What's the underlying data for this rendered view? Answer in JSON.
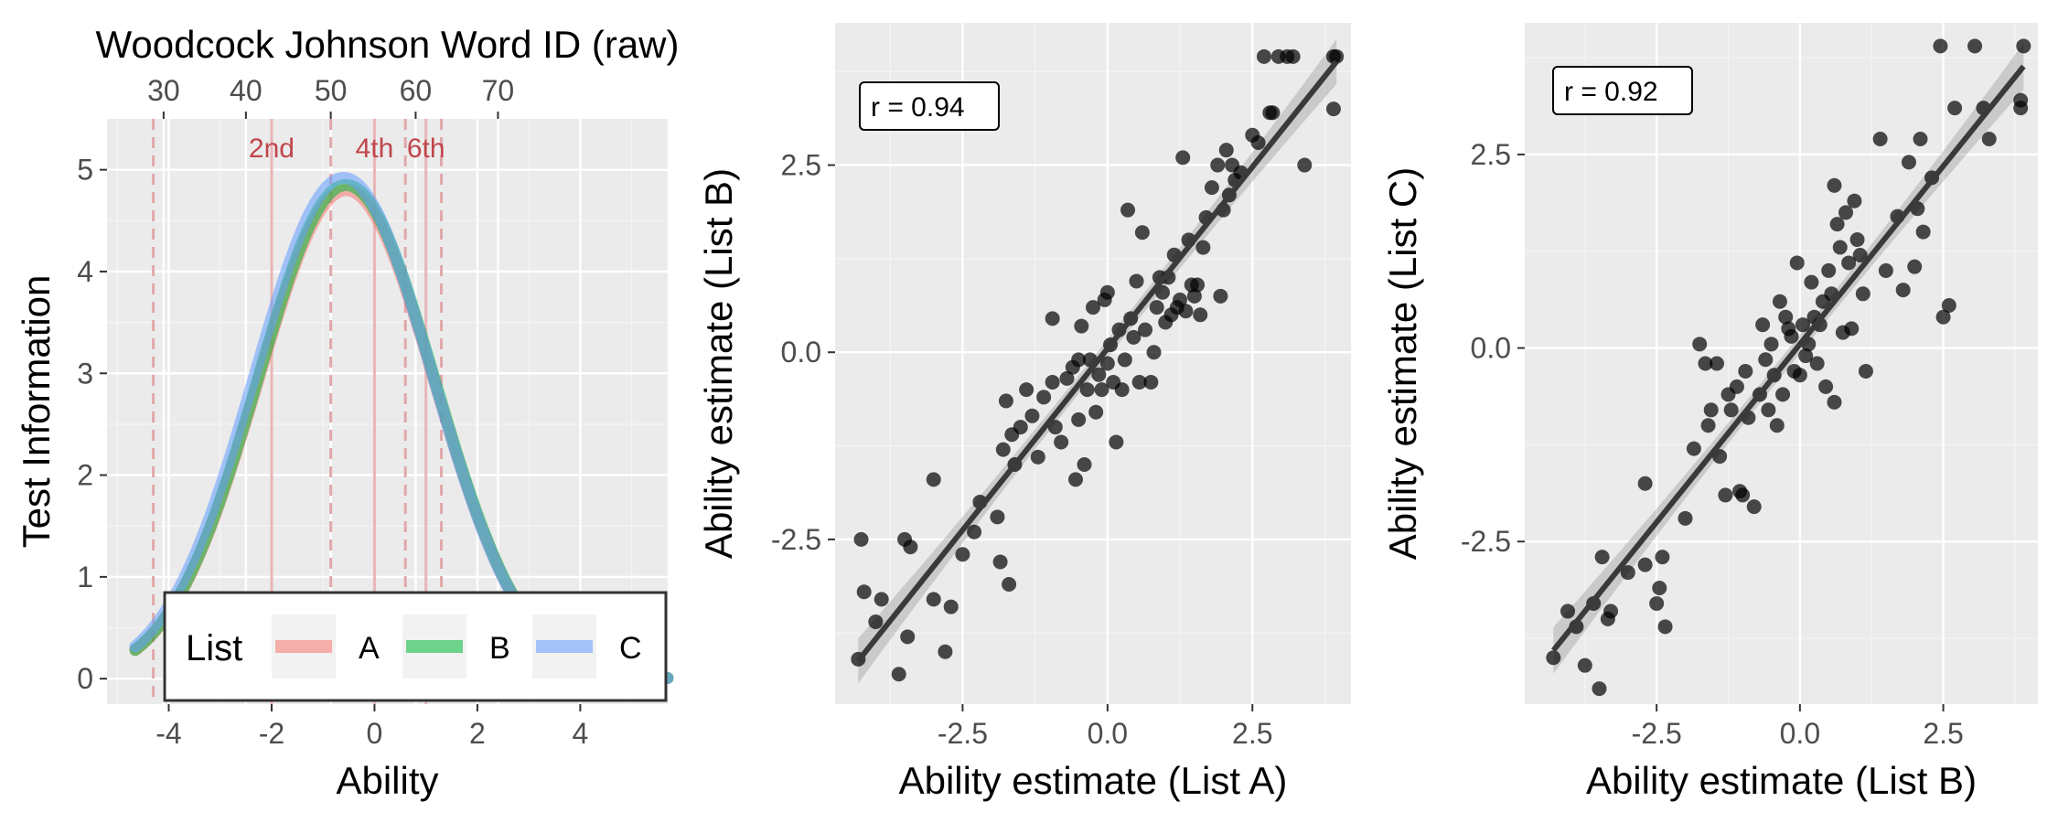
{
  "chart_data": [
    {
      "type": "line",
      "xlabel": "Ability",
      "ylabel": "Test Information",
      "top_axis_label": "Woodcock Johnson Word ID (raw)",
      "xlim": [
        -5.2,
        5.7
      ],
      "ylim": [
        -0.25,
        5.5
      ],
      "x_ticks": [
        -4,
        -2,
        0,
        2,
        4
      ],
      "y_ticks": [
        0,
        1,
        2,
        3,
        4,
        5
      ],
      "top_ticks": [
        {
          "label": "30",
          "x": -4.1
        },
        {
          "label": "40",
          "x": -2.5
        },
        {
          "label": "50",
          "x": -0.85
        },
        {
          "label": "60",
          "x": 0.8
        },
        {
          "label": "70",
          "x": 2.4
        }
      ],
      "grade_lines": [
        {
          "label": "2nd",
          "x": -2.0
        },
        {
          "label": "4th",
          "x": 0.0
        },
        {
          "label": "6th",
          "x": 1.0
        }
      ],
      "dashed_lines_x": [
        -4.3,
        -0.85,
        0.6,
        1.3
      ],
      "legend": {
        "title": "List",
        "position": "bottom-center"
      },
      "series": [
        {
          "name": "A",
          "color": "#f8766d",
          "peak": 4.8,
          "center": -0.55,
          "sd": 1.72,
          "start_x": -4.65
        },
        {
          "name": "B",
          "color": "#00ba38",
          "peak": 4.85,
          "center": -0.55,
          "sd": 1.72,
          "start_x": -4.65
        },
        {
          "name": "C",
          "color": "#619cff",
          "peak": 4.92,
          "center": -0.6,
          "sd": 1.73,
          "start_x": -4.65
        }
      ],
      "grid": true
    },
    {
      "type": "scatter",
      "xlabel": "Ability estimate (List A)",
      "ylabel": "Ability estimate (List B)",
      "annotation": "r = 0.94",
      "xlim": [
        -4.7,
        4.2
      ],
      "ylim": [
        -4.7,
        4.4
      ],
      "x_ticks": [
        -2.5,
        0.0,
        2.5
      ],
      "y_ticks": [
        -2.5,
        0.0,
        2.5
      ],
      "x_tick_labels": [
        "-2.5",
        "0.0",
        "2.5"
      ],
      "y_tick_labels": [
        "-2.5",
        "0.0",
        "2.5"
      ],
      "fit": {
        "slope": 0.97,
        "intercept": 0.05,
        "x_range": [
          -4.3,
          3.95
        ]
      },
      "points": [
        [
          -4.3,
          -4.1
        ],
        [
          -4.25,
          -2.5
        ],
        [
          -4.2,
          -3.2
        ],
        [
          -4.0,
          -3.6
        ],
        [
          -3.9,
          -3.3
        ],
        [
          -3.6,
          -4.3
        ],
        [
          -3.5,
          -2.5
        ],
        [
          -3.45,
          -3.8
        ],
        [
          -3.4,
          -2.6
        ],
        [
          -3.0,
          -1.7
        ],
        [
          -3.0,
          -3.3
        ],
        [
          -2.8,
          -4.0
        ],
        [
          -2.7,
          -3.4
        ],
        [
          -2.5,
          -2.7
        ],
        [
          -2.3,
          -2.4
        ],
        [
          -2.2,
          -2.0
        ],
        [
          -1.9,
          -2.2
        ],
        [
          -1.85,
          -2.8
        ],
        [
          -1.7,
          -3.1
        ],
        [
          -1.8,
          -1.3
        ],
        [
          -1.75,
          -0.65
        ],
        [
          -1.65,
          -1.1
        ],
        [
          -1.6,
          -1.5
        ],
        [
          -1.5,
          -1.0
        ],
        [
          -1.4,
          -0.5
        ],
        [
          -1.3,
          -0.85
        ],
        [
          -1.2,
          -1.4
        ],
        [
          -1.1,
          -0.6
        ],
        [
          -0.95,
          0.45
        ],
        [
          -0.95,
          -0.4
        ],
        [
          -0.9,
          -1.0
        ],
        [
          -0.8,
          -1.2
        ],
        [
          -0.7,
          -0.35
        ],
        [
          -0.6,
          -0.2
        ],
        [
          -0.55,
          -1.7
        ],
        [
          -0.5,
          -0.1
        ],
        [
          -0.5,
          -0.9
        ],
        [
          -0.45,
          0.35
        ],
        [
          -0.4,
          -1.5
        ],
        [
          -0.35,
          -0.5
        ],
        [
          -0.3,
          -0.1
        ],
        [
          -0.25,
          0.6
        ],
        [
          -0.2,
          -0.8
        ],
        [
          -0.15,
          -0.3
        ],
        [
          -0.1,
          -0.5
        ],
        [
          -0.05,
          0.7
        ],
        [
          0.0,
          0.8
        ],
        [
          0.0,
          -0.15
        ],
        [
          0.05,
          0.1
        ],
        [
          0.1,
          -0.4
        ],
        [
          0.15,
          -1.2
        ],
        [
          0.2,
          0.3
        ],
        [
          0.25,
          -0.5
        ],
        [
          0.3,
          -0.1
        ],
        [
          0.35,
          1.9
        ],
        [
          0.4,
          0.45
        ],
        [
          0.45,
          0.2
        ],
        [
          0.5,
          0.95
        ],
        [
          0.55,
          -0.4
        ],
        [
          0.6,
          1.6
        ],
        [
          0.65,
          0.3
        ],
        [
          0.75,
          -0.4
        ],
        [
          0.8,
          0.0
        ],
        [
          0.85,
          0.6
        ],
        [
          0.9,
          1.0
        ],
        [
          0.95,
          0.8
        ],
        [
          1.0,
          0.4
        ],
        [
          1.05,
          1.0
        ],
        [
          1.1,
          0.5
        ],
        [
          1.15,
          1.3
        ],
        [
          1.2,
          0.6
        ],
        [
          1.25,
          0.7
        ],
        [
          1.3,
          2.6
        ],
        [
          1.35,
          0.55
        ],
        [
          1.4,
          1.5
        ],
        [
          1.45,
          0.9
        ],
        [
          1.5,
          0.75
        ],
        [
          1.55,
          0.9
        ],
        [
          1.6,
          0.5
        ],
        [
          1.65,
          1.4
        ],
        [
          1.7,
          1.8
        ],
        [
          1.8,
          2.2
        ],
        [
          1.9,
          2.5
        ],
        [
          1.95,
          0.75
        ],
        [
          2.0,
          1.9
        ],
        [
          2.05,
          2.7
        ],
        [
          2.1,
          2.1
        ],
        [
          2.15,
          2.5
        ],
        [
          2.2,
          2.3
        ],
        [
          2.3,
          2.4
        ],
        [
          2.5,
          2.9
        ],
        [
          2.6,
          2.8
        ],
        [
          2.8,
          3.2
        ],
        [
          2.85,
          3.2
        ],
        [
          2.7,
          3.95
        ],
        [
          2.95,
          3.95
        ],
        [
          3.1,
          3.95
        ],
        [
          3.2,
          3.95
        ],
        [
          3.4,
          2.5
        ],
        [
          3.9,
          3.95
        ],
        [
          3.95,
          3.95
        ],
        [
          3.9,
          3.25
        ]
      ],
      "grid": true
    },
    {
      "type": "scatter",
      "xlabel": "Ability estimate (List B)",
      "ylabel": "Ability estimate (List C)",
      "annotation": "r = 0.92",
      "xlim": [
        -4.8,
        4.15
      ],
      "ylim": [
        -4.6,
        4.2
      ],
      "x_ticks": [
        -2.5,
        0.0,
        2.5
      ],
      "y_ticks": [
        -2.5,
        0.0,
        2.5
      ],
      "x_tick_labels": [
        "-2.5",
        "0.0",
        "2.5"
      ],
      "y_tick_labels": [
        "-2.5",
        "0.0",
        "2.5"
      ],
      "fit": {
        "slope": 0.92,
        "intercept": 0.05,
        "x_range": [
          -4.3,
          3.9
        ]
      },
      "points": [
        [
          -4.3,
          -4.0
        ],
        [
          -4.05,
          -3.4
        ],
        [
          -3.9,
          -3.6
        ],
        [
          -3.75,
          -4.1
        ],
        [
          -3.6,
          -3.3
        ],
        [
          -3.5,
          -4.4
        ],
        [
          -3.45,
          -2.7
        ],
        [
          -3.35,
          -3.5
        ],
        [
          -3.3,
          -3.4
        ],
        [
          -3.0,
          -2.9
        ],
        [
          -2.7,
          -1.75
        ],
        [
          -2.7,
          -2.8
        ],
        [
          -2.5,
          -3.3
        ],
        [
          -2.45,
          -3.1
        ],
        [
          -2.4,
          -2.7
        ],
        [
          -2.35,
          -3.6
        ],
        [
          -2.0,
          -2.2
        ],
        [
          -1.85,
          -1.3
        ],
        [
          -1.75,
          0.05
        ],
        [
          -1.65,
          -0.2
        ],
        [
          -1.6,
          -1.0
        ],
        [
          -1.55,
          -0.8
        ],
        [
          -1.45,
          -0.2
        ],
        [
          -1.4,
          -1.4
        ],
        [
          -1.3,
          -1.9
        ],
        [
          -1.25,
          -0.6
        ],
        [
          -1.2,
          -0.8
        ],
        [
          -1.1,
          -0.5
        ],
        [
          -1.05,
          -1.85
        ],
        [
          -1.0,
          -1.9
        ],
        [
          -0.95,
          -0.3
        ],
        [
          -0.9,
          -0.9
        ],
        [
          -0.8,
          -2.05
        ],
        [
          -0.7,
          -0.6
        ],
        [
          -0.65,
          0.3
        ],
        [
          -0.6,
          -0.15
        ],
        [
          -0.55,
          -0.8
        ],
        [
          -0.5,
          0.05
        ],
        [
          -0.45,
          -0.35
        ],
        [
          -0.4,
          -1.0
        ],
        [
          -0.35,
          0.6
        ],
        [
          -0.3,
          -0.6
        ],
        [
          -0.25,
          0.4
        ],
        [
          -0.2,
          0.25
        ],
        [
          -0.15,
          0.15
        ],
        [
          -0.1,
          -0.3
        ],
        [
          -0.05,
          1.1
        ],
        [
          0.0,
          -0.35
        ],
        [
          0.05,
          0.3
        ],
        [
          0.1,
          -0.1
        ],
        [
          0.15,
          0.05
        ],
        [
          0.2,
          0.85
        ],
        [
          0.25,
          0.4
        ],
        [
          0.3,
          -0.2
        ],
        [
          0.35,
          0.3
        ],
        [
          0.4,
          0.6
        ],
        [
          0.45,
          -0.5
        ],
        [
          0.5,
          1.0
        ],
        [
          0.55,
          0.7
        ],
        [
          0.6,
          -0.7
        ],
        [
          0.6,
          2.1
        ],
        [
          0.65,
          1.6
        ],
        [
          0.7,
          1.3
        ],
        [
          0.75,
          0.2
        ],
        [
          0.8,
          1.75
        ],
        [
          0.85,
          1.1
        ],
        [
          0.9,
          0.25
        ],
        [
          0.95,
          1.9
        ],
        [
          1.0,
          1.4
        ],
        [
          1.05,
          1.2
        ],
        [
          1.1,
          0.7
        ],
        [
          1.15,
          -0.3
        ],
        [
          1.4,
          2.7
        ],
        [
          1.5,
          1.0
        ],
        [
          1.7,
          1.7
        ],
        [
          1.8,
          0.75
        ],
        [
          1.9,
          2.4
        ],
        [
          2.0,
          1.05
        ],
        [
          2.05,
          1.8
        ],
        [
          2.1,
          2.7
        ],
        [
          2.15,
          1.5
        ],
        [
          2.3,
          2.2
        ],
        [
          2.45,
          3.9
        ],
        [
          2.5,
          0.4
        ],
        [
          2.6,
          0.55
        ],
        [
          2.7,
          3.1
        ],
        [
          3.05,
          3.9
        ],
        [
          3.2,
          3.1
        ],
        [
          3.3,
          2.7
        ],
        [
          3.85,
          3.2
        ],
        [
          3.85,
          3.1
        ],
        [
          3.9,
          3.9
        ]
      ],
      "grid": true
    }
  ]
}
